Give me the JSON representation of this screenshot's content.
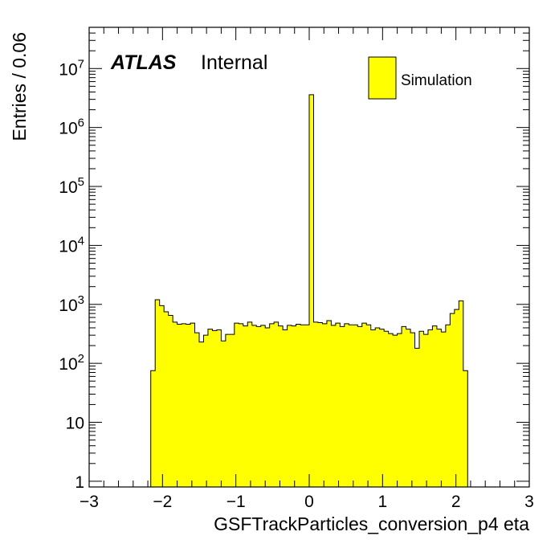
{
  "chart_data": {
    "type": "histogram",
    "xlabel": "GSFTrackParticles_conversion_p4 eta",
    "ylabel": "Entries / 0.06",
    "xlim": [
      -3,
      3
    ],
    "ylim": [
      0.8,
      50000000
    ],
    "yscale": "log",
    "bin_width": 0.06,
    "x_tick_labels": [
      "−3",
      "−2",
      "−1",
      "0",
      "1",
      "2",
      "3"
    ],
    "x_tick_values": [
      -3,
      -2,
      -1,
      0,
      1,
      2,
      3
    ],
    "y_tick_labels": [
      {
        "value": 1,
        "base": "1",
        "exp": ""
      },
      {
        "value": 10,
        "base": "10",
        "exp": ""
      },
      {
        "value": 100,
        "base": "10",
        "exp": "2"
      },
      {
        "value": 1000,
        "base": "10",
        "exp": "3"
      },
      {
        "value": 10000,
        "base": "10",
        "exp": "4"
      },
      {
        "value": 100000,
        "base": "10",
        "exp": "5"
      },
      {
        "value": 1000000,
        "base": "10",
        "exp": "6"
      },
      {
        "value": 10000000,
        "base": "10",
        "exp": "7"
      }
    ],
    "fill_color": "#ffff00",
    "line_color": "#000000",
    "legend": {
      "label": "Simulation",
      "position": "top-right"
    },
    "annotations": {
      "experiment": "ATLAS",
      "status": "Internal"
    },
    "series": [
      {
        "name": "Simulation",
        "bin_low_edges": [
          -2.16,
          -2.1,
          -2.04,
          -1.98,
          -1.92,
          -1.86,
          -1.8,
          -1.74,
          -1.68,
          -1.62,
          -1.56,
          -1.5,
          -1.44,
          -1.38,
          -1.32,
          -1.26,
          -1.2,
          -1.14,
          -1.08,
          -1.02,
          -0.96,
          -0.9,
          -0.84,
          -0.78,
          -0.72,
          -0.66,
          -0.6,
          -0.54,
          -0.48,
          -0.42,
          -0.36,
          -0.3,
          -0.24,
          -0.18,
          -0.12,
          -0.06,
          0.0,
          0.06,
          0.12,
          0.18,
          0.24,
          0.3,
          0.36,
          0.42,
          0.48,
          0.54,
          0.6,
          0.66,
          0.72,
          0.78,
          0.84,
          0.9,
          0.96,
          1.02,
          1.08,
          1.14,
          1.2,
          1.26,
          1.32,
          1.38,
          1.44,
          1.5,
          1.56,
          1.62,
          1.68,
          1.74,
          1.8,
          1.86,
          1.92,
          1.98,
          2.04,
          2.1
        ],
        "values": [
          75,
          1200,
          950,
          750,
          650,
          500,
          460,
          470,
          460,
          480,
          330,
          230,
          300,
          380,
          360,
          370,
          240,
          310,
          310,
          480,
          470,
          430,
          500,
          440,
          420,
          440,
          400,
          470,
          500,
          430,
          370,
          440,
          430,
          460,
          450,
          450,
          3600000,
          500,
          490,
          470,
          530,
          440,
          480,
          420,
          470,
          450,
          450,
          420,
          480,
          450,
          370,
          400,
          380,
          350,
          320,
          300,
          320,
          420,
          380,
          330,
          180,
          350,
          310,
          370,
          430,
          380,
          340,
          450,
          700,
          820,
          1150,
          75
        ]
      }
    ]
  }
}
